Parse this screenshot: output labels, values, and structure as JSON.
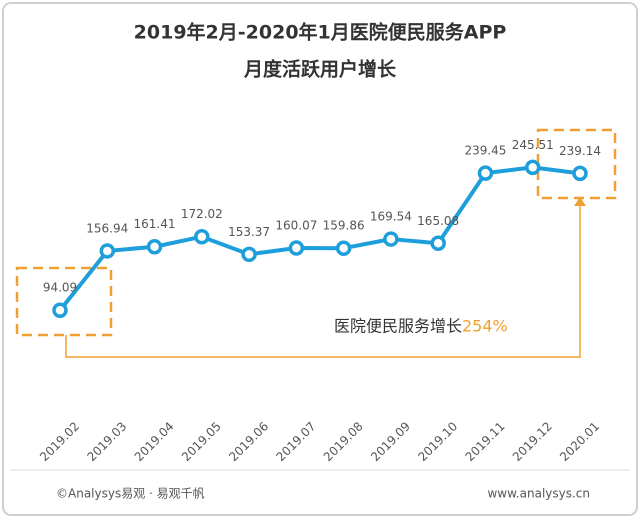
{
  "chart_data": {
    "type": "line",
    "title": "2019年2月-2020年1月医院便民服务APP",
    "subtitle": "月度活跃用户增长",
    "categories": [
      "2019.02",
      "2019.03",
      "2019.04",
      "2019.05",
      "2019.06",
      "2019.07",
      "2019.08",
      "2019.09",
      "2019.10",
      "2019.11",
      "2019.12",
      "2020.01"
    ],
    "series": [
      {
        "name": "月度活跃用户",
        "color": "#1e9fdc",
        "values": [
          94.09,
          156.94,
          161.41,
          172.02,
          153.37,
          160.07,
          159.86,
          169.54,
          165.08,
          239.45,
          245.51,
          239.14
        ]
      }
    ],
    "ylim": [
      0,
      300
    ],
    "annotation": "医院便民服务增长",
    "growth": "254%",
    "source": "©Analysys易观 · 易观千帆",
    "website": "www.analysys.cn"
  }
}
